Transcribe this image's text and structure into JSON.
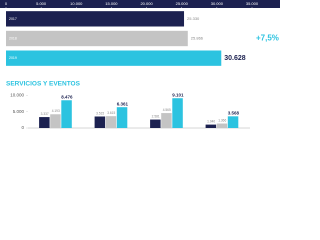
{
  "chart_data": [
    {
      "type": "hbar",
      "categories": [
        "2017",
        "2018",
        "2019"
      ],
      "values": [
        25330,
        25866,
        30628
      ],
      "value_labels": [
        "25.330",
        "25.866",
        "30.628"
      ],
      "colors": [
        "#1c2150",
        "#c4c4c4",
        "#2cc3e0"
      ],
      "annotation": "+7,5%",
      "xlim": [
        0,
        35000
      ],
      "xticks": [
        0,
        {
          "value": 5000,
          "label": "5.000"
        },
        {
          "value": 10000,
          "label": "10.000"
        },
        {
          "value": 15000,
          "label": "15.000"
        },
        {
          "value": 20000,
          "label": "20.000"
        },
        {
          "value": 25000,
          "label": "25.000"
        },
        {
          "value": 30000,
          "label": "30.000"
        },
        {
          "value": 35000,
          "label": "35.000"
        }
      ]
    },
    {
      "type": "grouped_bar",
      "title": "SERVICIOS Y EVENTOS",
      "categories": [
        null,
        null,
        null,
        null
      ],
      "series": [
        {
          "color": "#1c2150",
          "values": [
            3337,
            3515,
            2581,
            1040
          ],
          "value_labels": [
            "3.337",
            "3.515",
            "2.581",
            "1.040"
          ]
        },
        {
          "color": "#c4c4c4",
          "values": [
            4193,
            3615,
            4565,
            1366
          ],
          "value_labels": [
            "4.193",
            "3.615",
            "4.565",
            "1.366"
          ]
        },
        {
          "color": "#2cc3e0",
          "values": [
            8476,
            6361,
            9101,
            3568
          ],
          "value_labels": [
            "8.476",
            "6.361",
            "9.101",
            "3.568"
          ]
        }
      ],
      "ylim": [
        0,
        11000
      ],
      "yticks": [
        0,
        {
          "value": 5000,
          "label": "5.000"
        },
        {
          "value": 10000,
          "label": "10.000"
        }
      ]
    }
  ]
}
